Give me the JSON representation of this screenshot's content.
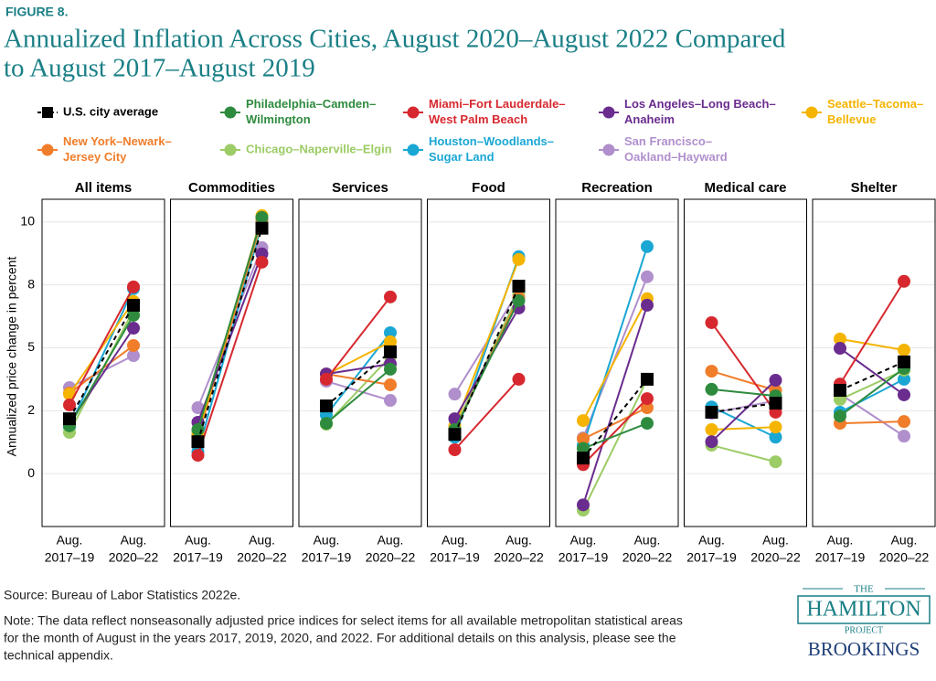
{
  "chart_data": {
    "type": "line",
    "figure_label": "FIGURE 8.",
    "title": [
      "Annualized Inflation Across Cities, August 2020–August 2022 Compared",
      "to August 2017–August 2019"
    ],
    "y_label": "Annualized price change in percent",
    "categories": [
      [
        "Aug.",
        "2017–19"
      ],
      [
        "Aug.",
        "2020–22"
      ]
    ],
    "ylim": [
      -2.1,
      10.9
    ],
    "yticks": [
      0,
      {
        "value": 2.5,
        "label": "2"
      },
      5,
      {
        "value": 7.5,
        "label": "8"
      },
      10
    ],
    "grid": true,
    "series": [
      {
        "name": [
          "U.S. city average"
        ],
        "color": "#000000",
        "dash": true,
        "marker": "square"
      },
      {
        "name": [
          "Philadelphia–Camden–",
          "Wilmington"
        ],
        "color": "#2e8b3e",
        "dash": false,
        "marker": "circle"
      },
      {
        "name": [
          "Miami–Fort Lauderdale–",
          "West Palm Beach"
        ],
        "color": "#d7282f",
        "dash": false,
        "marker": "circle"
      },
      {
        "name": [
          "Los Angeles–Long Beach–",
          "Anaheim"
        ],
        "color": "#6a2c8e",
        "dash": false,
        "marker": "circle"
      },
      {
        "name": [
          "Seattle–Tacoma–",
          "Bellevue"
        ],
        "color": "#f5b400",
        "dash": false,
        "marker": "circle"
      },
      {
        "name": [
          "New York–Newark–",
          "Jersey City"
        ],
        "color": "#f07d2a",
        "dash": false,
        "marker": "circle"
      },
      {
        "name": [
          "Chicago–Naperville–Elgin"
        ],
        "color": "#9ccc65",
        "dash": false,
        "marker": "circle"
      },
      {
        "name": [
          "Houston–Woodlands–",
          "Sugar Land"
        ],
        "color": "#1aa7d4",
        "dash": false,
        "marker": "circle"
      },
      {
        "name": [
          "San Francisco–",
          "Oakland–Hayward"
        ],
        "color": "#b08fcc",
        "dash": false,
        "marker": "circle"
      }
    ],
    "panels": [
      {
        "title": "All items",
        "values": [
          [
            2.18,
            6.69
          ],
          [
            1.9,
            6.29
          ],
          [
            2.73,
            7.42
          ],
          [
            2.0,
            5.78
          ],
          [
            3.16,
            6.84
          ],
          [
            3.2,
            5.09
          ],
          [
            1.64,
            6.5
          ],
          [
            1.85,
            7.35
          ],
          [
            3.42,
            4.69
          ]
        ]
      },
      {
        "title": "Commodities",
        "values": [
          [
            1.27,
            9.75
          ],
          [
            1.75,
            10.18
          ],
          [
            0.73,
            8.4
          ],
          [
            2.04,
            8.73
          ],
          [
            1.56,
            10.25
          ],
          [
            1.45,
            10.1
          ],
          [
            1.67,
            10.0
          ],
          [
            0.87,
            9.93
          ],
          [
            2.62,
            8.98
          ]
        ]
      },
      {
        "title": "Services",
        "values": [
          [
            2.69,
            4.84
          ],
          [
            2.0,
            4.15
          ],
          [
            3.75,
            7.02
          ],
          [
            3.96,
            4.36
          ],
          [
            3.93,
            5.24
          ],
          [
            3.96,
            3.53
          ],
          [
            1.96,
            4.65
          ],
          [
            2.33,
            5.6
          ],
          [
            3.67,
            2.91
          ]
        ]
      },
      {
        "title": "Food",
        "values": [
          [
            1.56,
            7.45
          ],
          [
            1.75,
            6.87
          ],
          [
            0.95,
            3.75
          ],
          [
            2.18,
            6.58
          ],
          [
            1.89,
            8.51
          ],
          [
            1.75,
            6.98
          ],
          [
            1.82,
            7.13
          ],
          [
            1.45,
            8.62
          ],
          [
            3.16,
            7.27
          ]
        ]
      },
      {
        "title": "Recreation",
        "values": [
          [
            0.62,
            3.75
          ],
          [
            1.0,
            2.0
          ],
          [
            0.36,
            2.98
          ],
          [
            -1.24,
            6.69
          ],
          [
            2.11,
            6.95
          ],
          [
            1.38,
            2.62
          ],
          [
            -1.45,
            3.75
          ],
          [
            1.13,
            9.02
          ],
          [
            1.42,
            7.82
          ]
        ]
      },
      {
        "title": "Medical care",
        "values": [
          [
            2.44,
            2.8
          ],
          [
            3.35,
            3.09
          ],
          [
            6.0,
            2.44
          ],
          [
            1.27,
            3.71
          ],
          [
            1.75,
            1.85
          ],
          [
            4.07,
            3.31
          ],
          [
            1.13,
            0.47
          ],
          [
            2.65,
            1.45
          ],
          [
            2.4,
            2.9
          ]
        ]
      },
      {
        "title": "Shelter",
        "values": [
          [
            3.31,
            4.44
          ],
          [
            2.29,
            4.18
          ],
          [
            3.56,
            7.64
          ],
          [
            4.98,
            3.13
          ],
          [
            5.35,
            4.91
          ],
          [
            2.0,
            2.07
          ],
          [
            2.95,
            4.11
          ],
          [
            2.44,
            3.75
          ],
          [
            3.16,
            1.49
          ]
        ]
      }
    ],
    "source": "Source: Bureau of Labor Statistics 2022e.",
    "note": [
      "Note: The data reflect nonseasonally adjusted price indices for select items for all available metropolitan statistical areas",
      "for the month of August in the years 2017, 2019, 2020, and 2022. For additional details on this analysis, please see the",
      "technical appendix."
    ],
    "logo": [
      "THE",
      "HAMILTON",
      "PROJECT",
      "BROOKINGS"
    ]
  }
}
